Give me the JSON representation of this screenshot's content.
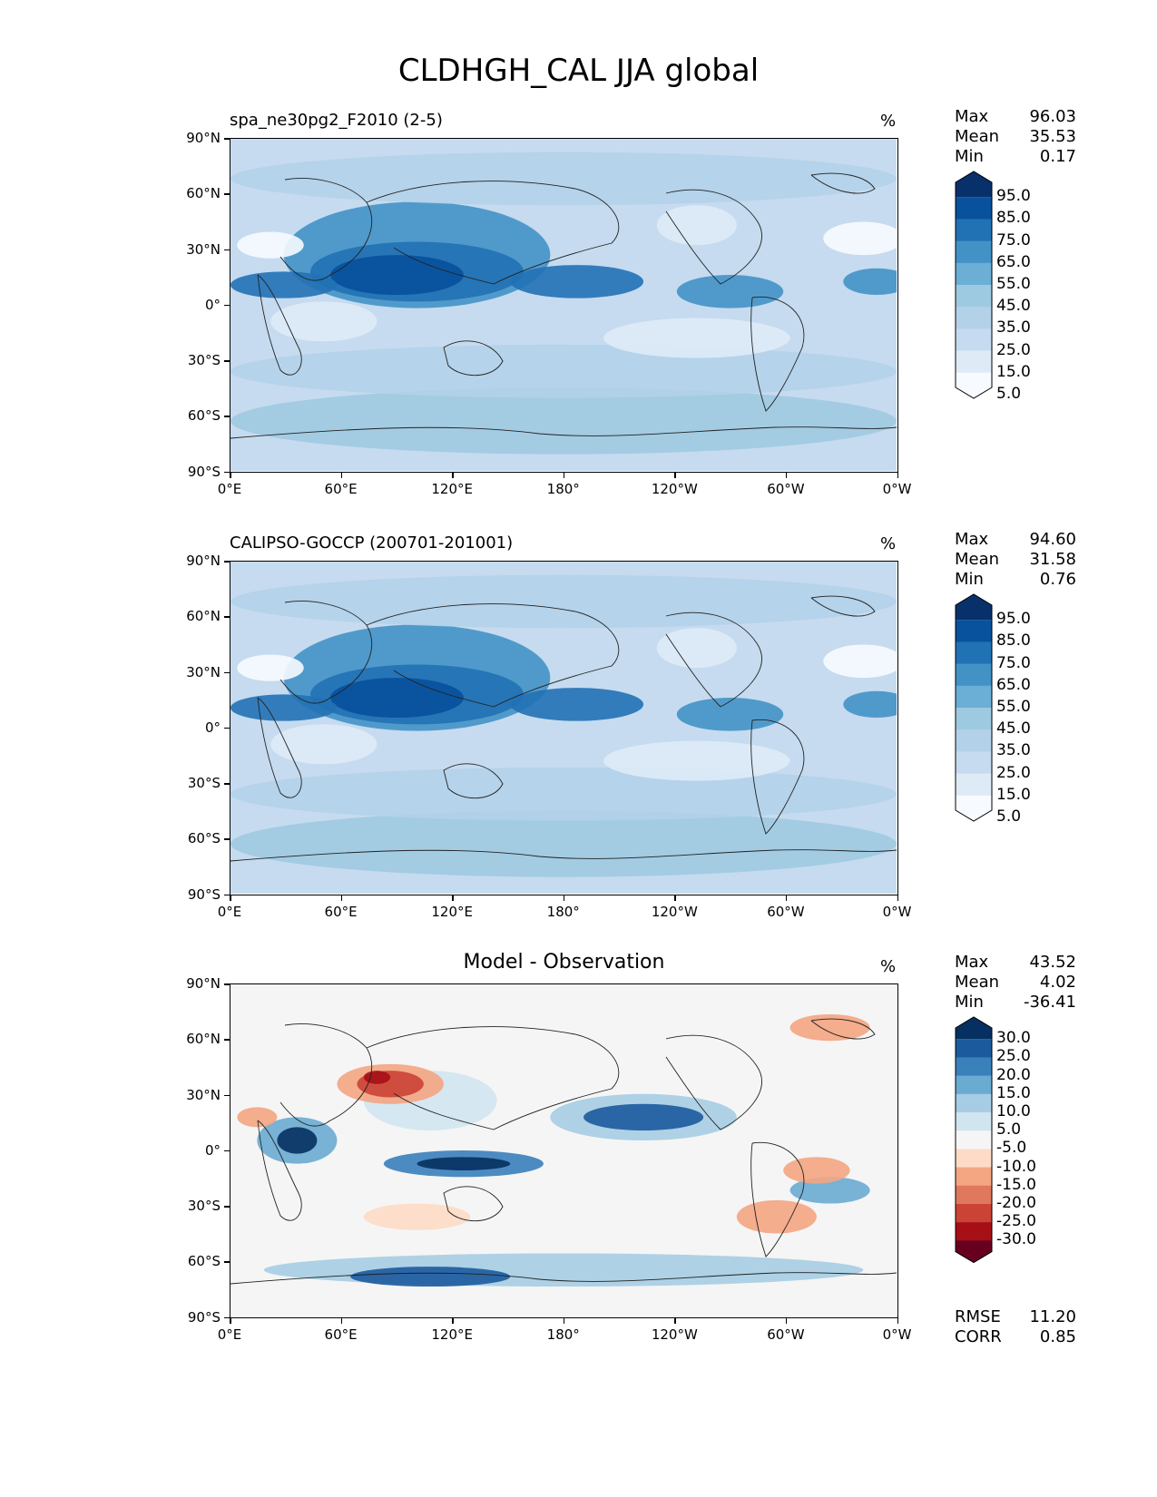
{
  "figure_title": "CLDHGH_CAL JJA global",
  "chart_data": [
    {
      "type": "heatmap",
      "title": "spa_ne30pg2_F2010 (2-5)",
      "units": "%",
      "stats": [
        {
          "k": "Max",
          "v": "96.03"
        },
        {
          "k": "Mean",
          "v": "35.53"
        },
        {
          "k": "Min",
          "v": "0.17"
        }
      ],
      "xticks": [
        "0°E",
        "60°E",
        "120°E",
        "180°",
        "120°W",
        "60°W",
        "0°W"
      ],
      "yticks": [
        "90°N",
        "60°N",
        "30°N",
        "0°",
        "30°S",
        "60°S",
        "90°S"
      ],
      "colorbar_levels": [
        "95.0",
        "85.0",
        "75.0",
        "65.0",
        "55.0",
        "45.0",
        "35.0",
        "25.0",
        "15.0",
        "5.0"
      ],
      "colormap": [
        "#f7fbff",
        "#deebf7",
        "#c6dbef",
        "#b3d2e9",
        "#9ecae1",
        "#6baed6",
        "#4292c6",
        "#2171b5",
        "#08519c",
        "#08306b"
      ],
      "xlim": [
        0,
        360
      ],
      "ylim": [
        -90,
        90
      ]
    },
    {
      "type": "heatmap",
      "title": "CALIPSO-GOCCP (200701-201001)",
      "units": "%",
      "stats": [
        {
          "k": "Max",
          "v": "94.60"
        },
        {
          "k": "Mean",
          "v": "31.58"
        },
        {
          "k": "Min",
          "v": "0.76"
        }
      ],
      "xticks": [
        "0°E",
        "60°E",
        "120°E",
        "180°",
        "120°W",
        "60°W",
        "0°W"
      ],
      "yticks": [
        "90°N",
        "60°N",
        "30°N",
        "0°",
        "30°S",
        "60°S",
        "90°S"
      ],
      "colorbar_levels": [
        "95.0",
        "85.0",
        "75.0",
        "65.0",
        "55.0",
        "45.0",
        "35.0",
        "25.0",
        "15.0",
        "5.0"
      ],
      "colormap": [
        "#f7fbff",
        "#deebf7",
        "#c6dbef",
        "#b3d2e9",
        "#9ecae1",
        "#6baed6",
        "#4292c6",
        "#2171b5",
        "#08519c",
        "#08306b"
      ],
      "xlim": [
        0,
        360
      ],
      "ylim": [
        -90,
        90
      ]
    },
    {
      "type": "heatmap",
      "title": "Model - Observation",
      "units": "%",
      "stats": [
        {
          "k": "Max",
          "v": "43.52"
        },
        {
          "k": "Mean",
          "v": "4.02"
        },
        {
          "k": "Min",
          "v": "-36.41"
        }
      ],
      "extra_stats": [
        {
          "k": "RMSE",
          "v": "11.20"
        },
        {
          "k": "CORR",
          "v": "0.85"
        }
      ],
      "xticks": [
        "0°E",
        "60°E",
        "120°E",
        "180°",
        "120°W",
        "60°W",
        "0°W"
      ],
      "yticks": [
        "90°N",
        "60°N",
        "30°N",
        "0°",
        "30°S",
        "60°S",
        "90°S"
      ],
      "colorbar_levels": [
        "30.0",
        "25.0",
        "20.0",
        "15.0",
        "10.0",
        "5.0",
        "-5.0",
        "-10.0",
        "-15.0",
        "-20.0",
        "-25.0",
        "-30.0"
      ],
      "colormap": [
        "#67001f",
        "#a50f15",
        "#cb4335",
        "#e0785e",
        "#f4a582",
        "#fddbc7",
        "#f5f5f5",
        "#d1e5f0",
        "#a6cde3",
        "#6aabd2",
        "#3a80bb",
        "#1c5a9e",
        "#053061"
      ],
      "xlim": [
        0,
        360
      ],
      "ylim": [
        -90,
        90
      ]
    }
  ]
}
